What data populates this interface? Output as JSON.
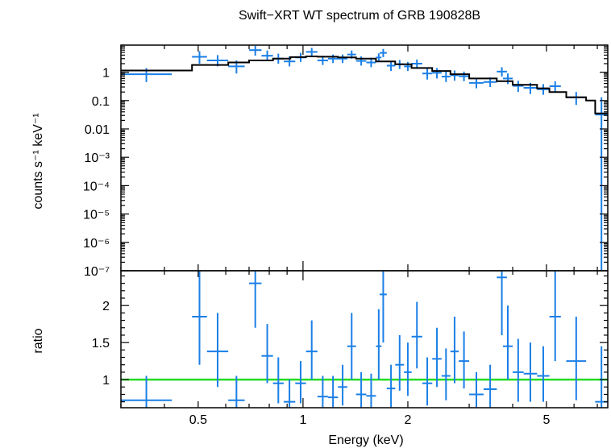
{
  "title": "Swift−XRT WT spectrum of GRB 190828B",
  "colors": {
    "data": "#1a7fe6",
    "model": "#000000",
    "unity": "#22dd22",
    "axes": "#000000"
  },
  "chart_data": [
    {
      "type": "scatter",
      "panel": "spectrum",
      "title": "Swift−XRT WT spectrum of GRB 190828B",
      "xlabel": "",
      "ylabel": "counts s⁻¹ keV⁻¹",
      "xscale": "log",
      "yscale": "log",
      "xlim": [
        0.3,
        7.5
      ],
      "ylim": [
        1e-07,
        9
      ],
      "yticks": [
        {
          "v": 1,
          "label": "1"
        },
        {
          "v": 0.1,
          "label": "0.1"
        },
        {
          "v": 0.01,
          "label": "0.01"
        },
        {
          "v": 0.001,
          "label": "10⁻³"
        },
        {
          "v": 0.0001,
          "label": "10⁻⁴"
        },
        {
          "v": 1e-05,
          "label": "10⁻⁵"
        },
        {
          "v": 1e-06,
          "label": "10⁻⁶"
        },
        {
          "v": 1e-07,
          "label": "10⁻⁷"
        }
      ],
      "data": [
        {
          "x0": 0.3,
          "x1": 0.42,
          "y": 0.85,
          "ylo": 0.45,
          "yhi": 1.4
        },
        {
          "x0": 0.48,
          "x1": 0.53,
          "y": 3.5,
          "ylo": 2.0,
          "yhi": 5.5
        },
        {
          "x0": 0.53,
          "x1": 0.61,
          "y": 2.6,
          "ylo": 1.6,
          "yhi": 4.0
        },
        {
          "x0": 0.61,
          "x1": 0.68,
          "y": 1.6,
          "ylo": 0.9,
          "yhi": 2.6
        },
        {
          "x0": 0.7,
          "x1": 0.76,
          "y": 6.0,
          "ylo": 3.8,
          "yhi": 8.5
        },
        {
          "x0": 0.76,
          "x1": 0.82,
          "y": 3.8,
          "ylo": 2.5,
          "yhi": 5.8
        },
        {
          "x0": 0.82,
          "x1": 0.88,
          "y": 3.0,
          "ylo": 2.0,
          "yhi": 4.5
        },
        {
          "x0": 0.88,
          "x1": 0.95,
          "y": 2.4,
          "ylo": 1.6,
          "yhi": 3.6
        },
        {
          "x0": 0.95,
          "x1": 1.02,
          "y": 3.3,
          "ylo": 2.3,
          "yhi": 4.8
        },
        {
          "x0": 1.02,
          "x1": 1.1,
          "y": 5.2,
          "ylo": 3.8,
          "yhi": 7.2
        },
        {
          "x0": 1.1,
          "x1": 1.18,
          "y": 2.6,
          "ylo": 1.8,
          "yhi": 3.8
        },
        {
          "x0": 1.18,
          "x1": 1.26,
          "y": 3.0,
          "ylo": 2.1,
          "yhi": 4.2
        },
        {
          "x0": 1.26,
          "x1": 1.34,
          "y": 3.0,
          "ylo": 2.1,
          "yhi": 4.2
        },
        {
          "x0": 1.34,
          "x1": 1.42,
          "y": 4.2,
          "ylo": 3.0,
          "yhi": 5.8
        },
        {
          "x0": 1.42,
          "x1": 1.52,
          "y": 2.5,
          "ylo": 1.7,
          "yhi": 3.6
        },
        {
          "x0": 1.52,
          "x1": 1.62,
          "y": 2.2,
          "ylo": 1.5,
          "yhi": 3.2
        },
        {
          "x0": 1.62,
          "x1": 1.68,
          "y": 3.3,
          "ylo": 2.3,
          "yhi": 4.6
        },
        {
          "x0": 1.66,
          "x1": 1.74,
          "y": 4.8,
          "ylo": 3.4,
          "yhi": 6.6
        },
        {
          "x0": 1.74,
          "x1": 1.84,
          "y": 1.7,
          "ylo": 1.1,
          "yhi": 2.5
        },
        {
          "x0": 1.84,
          "x1": 1.95,
          "y": 1.9,
          "ylo": 1.3,
          "yhi": 2.7
        },
        {
          "x0": 1.95,
          "x1": 2.05,
          "y": 1.6,
          "ylo": 1.1,
          "yhi": 2.3
        },
        {
          "x0": 2.05,
          "x1": 2.2,
          "y": 2.0,
          "ylo": 1.4,
          "yhi": 2.8
        },
        {
          "x0": 2.2,
          "x1": 2.35,
          "y": 0.9,
          "ylo": 0.55,
          "yhi": 1.35
        },
        {
          "x0": 2.35,
          "x1": 2.5,
          "y": 0.95,
          "ylo": 0.6,
          "yhi": 1.4
        },
        {
          "x0": 2.5,
          "x1": 2.65,
          "y": 0.7,
          "ylo": 0.45,
          "yhi": 1.05
        },
        {
          "x0": 2.65,
          "x1": 2.8,
          "y": 0.78,
          "ylo": 0.5,
          "yhi": 1.15
        },
        {
          "x0": 2.8,
          "x1": 3.0,
          "y": 0.72,
          "ylo": 0.48,
          "yhi": 1.05
        },
        {
          "x0": 3.0,
          "x1": 3.3,
          "y": 0.42,
          "ylo": 0.27,
          "yhi": 0.62
        },
        {
          "x0": 3.3,
          "x1": 3.6,
          "y": 0.45,
          "ylo": 0.3,
          "yhi": 0.65
        },
        {
          "x0": 3.6,
          "x1": 3.85,
          "y": 1.05,
          "ylo": 0.7,
          "yhi": 1.5
        },
        {
          "x0": 3.75,
          "x1": 4.0,
          "y": 0.6,
          "ylo": 0.38,
          "yhi": 0.9
        },
        {
          "x0": 4.0,
          "x1": 4.3,
          "y": 0.33,
          "ylo": 0.2,
          "yhi": 0.5
        },
        {
          "x0": 4.3,
          "x1": 4.7,
          "y": 0.28,
          "ylo": 0.17,
          "yhi": 0.42
        },
        {
          "x0": 4.7,
          "x1": 5.1,
          "y": 0.25,
          "ylo": 0.16,
          "yhi": 0.38
        },
        {
          "x0": 5.1,
          "x1": 5.5,
          "y": 0.32,
          "ylo": 0.2,
          "yhi": 0.48
        },
        {
          "x0": 5.7,
          "x1": 6.5,
          "y": 0.13,
          "ylo": 0.07,
          "yhi": 0.2
        },
        {
          "x0": 6.9,
          "x1": 7.5,
          "y": 0.032,
          "ylo": 1e-07,
          "yhi": 0.13
        }
      ],
      "model": [
        {
          "x0": 0.3,
          "x1": 0.48,
          "y": 1.15
        },
        {
          "x0": 0.48,
          "x1": 0.61,
          "y": 1.8
        },
        {
          "x0": 0.61,
          "x1": 0.7,
          "y": 2.2
        },
        {
          "x0": 0.7,
          "x1": 0.82,
          "y": 2.6
        },
        {
          "x0": 0.82,
          "x1": 0.92,
          "y": 3.0
        },
        {
          "x0": 0.92,
          "x1": 1.02,
          "y": 3.4
        },
        {
          "x0": 1.02,
          "x1": 1.1,
          "y": 3.6
        },
        {
          "x0": 1.1,
          "x1": 1.26,
          "y": 3.5
        },
        {
          "x0": 1.26,
          "x1": 1.42,
          "y": 3.3
        },
        {
          "x0": 1.42,
          "x1": 1.62,
          "y": 3.0
        },
        {
          "x0": 1.62,
          "x1": 1.84,
          "y": 2.4
        },
        {
          "x0": 1.84,
          "x1": 2.05,
          "y": 1.9
        },
        {
          "x0": 2.05,
          "x1": 2.35,
          "y": 1.4
        },
        {
          "x0": 2.35,
          "x1": 2.65,
          "y": 1.1
        },
        {
          "x0": 2.65,
          "x1": 3.0,
          "y": 0.85
        },
        {
          "x0": 3.0,
          "x1": 3.6,
          "y": 0.6
        },
        {
          "x0": 3.6,
          "x1": 4.0,
          "y": 0.48
        },
        {
          "x0": 4.0,
          "x1": 4.7,
          "y": 0.36
        },
        {
          "x0": 4.7,
          "x1": 5.1,
          "y": 0.27
        },
        {
          "x0": 5.1,
          "x1": 5.7,
          "y": 0.2
        },
        {
          "x0": 5.7,
          "x1": 6.5,
          "y": 0.13
        },
        {
          "x0": 6.5,
          "x1": 6.9,
          "y": 0.1
        },
        {
          "x0": 6.9,
          "x1": 7.5,
          "y": 0.035
        }
      ]
    },
    {
      "type": "scatter",
      "panel": "ratio",
      "xlabel": "Energy (keV)",
      "ylabel": "ratio",
      "xscale": "log",
      "yscale": "linear",
      "xlim": [
        0.3,
        7.5
      ],
      "ylim": [
        0.62,
        2.47
      ],
      "yticks": [
        {
          "v": 1,
          "label": "1"
        },
        {
          "v": 1.5,
          "label": "1.5"
        },
        {
          "v": 2,
          "label": "2"
        }
      ],
      "xticks": [
        {
          "v": 0.5,
          "label": "0.5"
        },
        {
          "v": 1,
          "label": "1"
        },
        {
          "v": 2,
          "label": "2"
        },
        {
          "v": 5,
          "label": "5"
        }
      ],
      "unity_line": 1,
      "data": [
        {
          "x0": 0.3,
          "x1": 0.42,
          "y": 0.72,
          "ylo": 0.62,
          "yhi": 1.05
        },
        {
          "x0": 0.48,
          "x1": 0.53,
          "y": 1.85,
          "ylo": 1.2,
          "yhi": 2.47
        },
        {
          "x0": 0.53,
          "x1": 0.61,
          "y": 1.38,
          "ylo": 0.9,
          "yhi": 1.9
        },
        {
          "x0": 0.61,
          "x1": 0.68,
          "y": 0.72,
          "ylo": 0.62,
          "yhi": 1.05
        },
        {
          "x0": 0.7,
          "x1": 0.76,
          "y": 2.3,
          "ylo": 1.7,
          "yhi": 2.47
        },
        {
          "x0": 0.76,
          "x1": 0.82,
          "y": 1.32,
          "ylo": 0.95,
          "yhi": 1.75
        },
        {
          "x0": 0.82,
          "x1": 0.88,
          "y": 0.95,
          "ylo": 0.68,
          "yhi": 1.3
        },
        {
          "x0": 0.88,
          "x1": 0.95,
          "y": 0.7,
          "ylo": 0.62,
          "yhi": 1.0
        },
        {
          "x0": 0.95,
          "x1": 1.02,
          "y": 0.95,
          "ylo": 0.68,
          "yhi": 1.25
        },
        {
          "x0": 1.02,
          "x1": 1.1,
          "y": 1.38,
          "ylo": 1.0,
          "yhi": 1.8
        },
        {
          "x0": 1.1,
          "x1": 1.18,
          "y": 0.77,
          "ylo": 0.62,
          "yhi": 1.05
        },
        {
          "x0": 1.18,
          "x1": 1.26,
          "y": 0.76,
          "ylo": 0.62,
          "yhi": 1.05
        },
        {
          "x0": 1.26,
          "x1": 1.34,
          "y": 0.9,
          "ylo": 0.65,
          "yhi": 1.2
        },
        {
          "x0": 1.34,
          "x1": 1.42,
          "y": 1.45,
          "ylo": 1.0,
          "yhi": 1.9
        },
        {
          "x0": 1.42,
          "x1": 1.52,
          "y": 0.8,
          "ylo": 0.62,
          "yhi": 1.1
        },
        {
          "x0": 1.52,
          "x1": 1.62,
          "y": 0.78,
          "ylo": 0.62,
          "yhi": 1.08
        },
        {
          "x0": 1.62,
          "x1": 1.68,
          "y": 1.45,
          "ylo": 1.0,
          "yhi": 1.95
        },
        {
          "x0": 1.66,
          "x1": 1.74,
          "y": 2.15,
          "ylo": 1.5,
          "yhi": 2.47
        },
        {
          "x0": 1.74,
          "x1": 1.84,
          "y": 0.88,
          "ylo": 0.62,
          "yhi": 1.2
        },
        {
          "x0": 1.84,
          "x1": 1.95,
          "y": 1.2,
          "ylo": 0.85,
          "yhi": 1.6
        },
        {
          "x0": 1.95,
          "x1": 2.05,
          "y": 1.1,
          "ylo": 0.78,
          "yhi": 1.5
        },
        {
          "x0": 2.05,
          "x1": 2.2,
          "y": 1.58,
          "ylo": 1.15,
          "yhi": 2.05
        },
        {
          "x0": 2.2,
          "x1": 2.35,
          "y": 0.95,
          "ylo": 0.65,
          "yhi": 1.3
        },
        {
          "x0": 2.35,
          "x1": 2.5,
          "y": 1.28,
          "ylo": 0.9,
          "yhi": 1.7
        },
        {
          "x0": 2.5,
          "x1": 2.65,
          "y": 1.05,
          "ylo": 0.72,
          "yhi": 1.42
        },
        {
          "x0": 2.65,
          "x1": 2.8,
          "y": 1.38,
          "ylo": 0.95,
          "yhi": 1.85
        },
        {
          "x0": 2.8,
          "x1": 3.0,
          "y": 1.25,
          "ylo": 0.88,
          "yhi": 1.65
        },
        {
          "x0": 3.0,
          "x1": 3.3,
          "y": 0.8,
          "ylo": 0.62,
          "yhi": 1.1
        },
        {
          "x0": 3.3,
          "x1": 3.6,
          "y": 0.87,
          "ylo": 0.62,
          "yhi": 1.2
        },
        {
          "x0": 3.6,
          "x1": 3.85,
          "y": 2.38,
          "ylo": 1.6,
          "yhi": 2.47
        },
        {
          "x0": 3.75,
          "x1": 4.0,
          "y": 1.45,
          "ylo": 1.0,
          "yhi": 2.0
        },
        {
          "x0": 4.0,
          "x1": 4.3,
          "y": 1.1,
          "ylo": 0.7,
          "yhi": 1.55
        },
        {
          "x0": 4.3,
          "x1": 4.7,
          "y": 1.08,
          "ylo": 0.7,
          "yhi": 1.5
        },
        {
          "x0": 4.7,
          "x1": 5.1,
          "y": 1.05,
          "ylo": 0.7,
          "yhi": 1.45
        },
        {
          "x0": 5.1,
          "x1": 5.5,
          "y": 1.85,
          "ylo": 1.25,
          "yhi": 2.47
        },
        {
          "x0": 5.7,
          "x1": 6.5,
          "y": 1.25,
          "ylo": 0.72,
          "yhi": 1.85
        },
        {
          "x0": 6.9,
          "x1": 7.5,
          "y": 0.7,
          "ylo": 0.62,
          "yhi": 1.45
        }
      ]
    }
  ]
}
